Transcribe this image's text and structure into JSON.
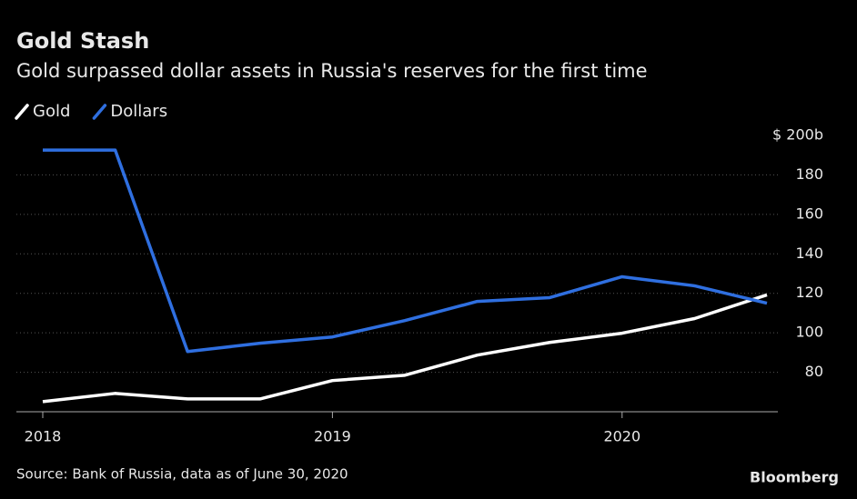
{
  "chart_data": {
    "type": "line",
    "title": "Gold Stash",
    "subtitle": "Gold surpassed dollar assets in Russia's reserves for the first time",
    "source": "Source: Bank of Russia, data as of June 30, 2020",
    "brand": "Bloomberg",
    "x": [
      2018,
      2018.25,
      2018.5,
      2018.75,
      2019,
      2019.25,
      2019.5,
      2019.75,
      2020,
      2020.25,
      2020.5
    ],
    "xlim": [
      2018,
      2020.5
    ],
    "xticks": [
      2018,
      2019,
      2020
    ],
    "ylim": [
      60,
      200
    ],
    "yticks": [
      80,
      100,
      120,
      140,
      160,
      180,
      {
        "value": 200,
        "label": "$ 200b"
      }
    ],
    "grid": true,
    "series": [
      {
        "name": "Gold",
        "color": "#ffffff",
        "values": [
          65.1,
          69.3,
          66.5,
          66.5,
          75.8,
          78.5,
          88.7,
          95.1,
          99.8,
          107.2,
          119.2
        ]
      },
      {
        "name": "Dollars",
        "color": "#2f6fe0",
        "values": [
          192.6,
          192.6,
          90.5,
          94.7,
          97.9,
          106.2,
          115.9,
          117.8,
          128.4,
          123.8,
          115.0
        ]
      }
    ]
  }
}
